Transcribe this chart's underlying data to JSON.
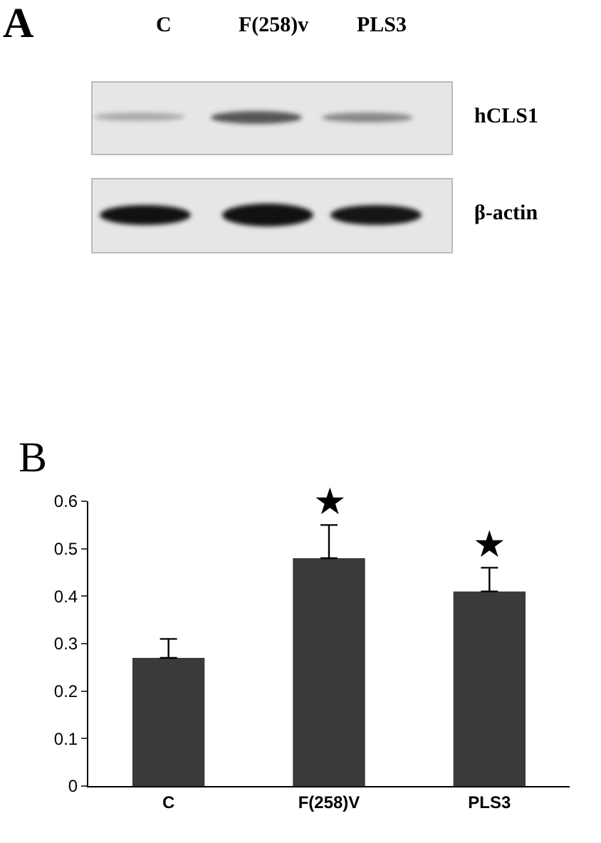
{
  "chart_data": [
    {
      "type": "other",
      "title": "A",
      "annotations": [
        "C",
        "F(258)v",
        "PLS3",
        "hCLS1",
        "β-actin"
      ]
    },
    {
      "type": "bar",
      "title": "B",
      "categories": [
        "C",
        "F(258)V",
        "PLS3"
      ],
      "values": [
        0.27,
        0.48,
        0.41
      ],
      "color": "#3a3a3a",
      "errors": [
        [
          0.27,
          0.31
        ],
        [
          0.48,
          0.55
        ],
        [
          0.41,
          0.46
        ]
      ],
      "ylim": [
        0,
        0.6
      ],
      "yticks": [
        0,
        0.1,
        0.2,
        0.3,
        0.4,
        0.5,
        0.6
      ],
      "grid": false,
      "annotations": [
        {
          "text": "★",
          "x": "F(258)V",
          "y": 0.55
        },
        {
          "text": "★",
          "x": "PLS3",
          "y": 0.46
        }
      ]
    }
  ]
}
